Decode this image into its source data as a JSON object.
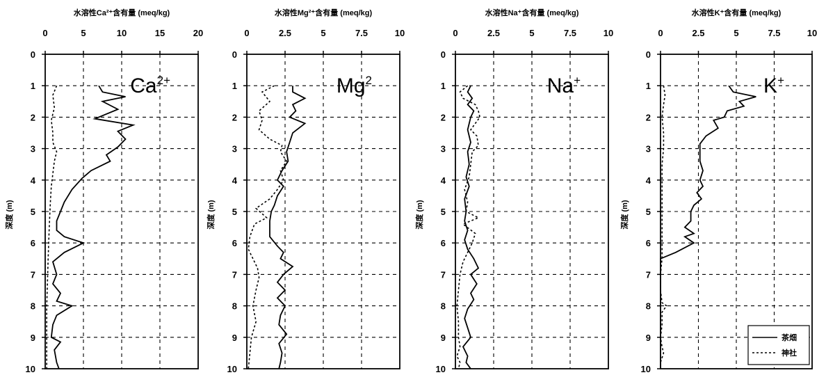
{
  "chart_data": [
    {
      "type": "line",
      "title": "水溶性Ca²⁺含有量 (meq/kg)",
      "panel_label": "Ca2+",
      "ylabel": "深度 (m)",
      "xlim": [
        0,
        20
      ],
      "xticks": [
        "0",
        "5",
        "10",
        "15",
        "20"
      ],
      "ylim": [
        0,
        10
      ],
      "yticks": [
        "0",
        "1",
        "2",
        "3",
        "4",
        "5",
        "6",
        "7",
        "8",
        "9",
        "10"
      ],
      "grid": true,
      "series": [
        {
          "name": "茶畑",
          "style": "solid",
          "color": "#000000",
          "points": [
            [
              7,
              1.0
            ],
            [
              7.5,
              1.2
            ],
            [
              10.5,
              1.35
            ],
            [
              7.5,
              1.5
            ],
            [
              9.5,
              1.75
            ],
            [
              6.5,
              2.05
            ],
            [
              11.5,
              2.25
            ],
            [
              9.5,
              2.45
            ],
            [
              10.5,
              2.7
            ],
            [
              9.5,
              2.95
            ],
            [
              8,
              3.2
            ],
            [
              8.5,
              3.4
            ],
            [
              6,
              3.7
            ],
            [
              4.8,
              3.95
            ],
            [
              3.5,
              4.3
            ],
            [
              2.5,
              4.7
            ],
            [
              2,
              5.0
            ],
            [
              1.5,
              5.3
            ],
            [
              1.5,
              5.6
            ],
            [
              2.5,
              5.8
            ],
            [
              5,
              6.0
            ],
            [
              2.5,
              6.3
            ],
            [
              1,
              6.6
            ],
            [
              1.5,
              7.0
            ],
            [
              1,
              7.3
            ],
            [
              2,
              7.6
            ],
            [
              1.5,
              7.85
            ],
            [
              3.5,
              8.0
            ],
            [
              1.5,
              8.3
            ],
            [
              1,
              8.6
            ],
            [
              0.8,
              9.0
            ],
            [
              2,
              9.15
            ],
            [
              1.2,
              9.4
            ],
            [
              1.5,
              9.8
            ],
            [
              1.8,
              10.0
            ]
          ]
        },
        {
          "name": "神社",
          "style": "dashed",
          "color": "#000000",
          "points": [
            [
              1.5,
              1.0
            ],
            [
              1.0,
              1.3
            ],
            [
              1.2,
              1.7
            ],
            [
              0.8,
              2.1
            ],
            [
              1.0,
              2.5
            ],
            [
              1.0,
              2.8
            ],
            [
              1.5,
              3.1
            ],
            [
              1.2,
              3.4
            ],
            [
              1.0,
              3.8
            ],
            [
              0.8,
              4.2
            ],
            [
              0.7,
              4.6
            ],
            [
              0.6,
              5.1
            ],
            [
              0.5,
              5.7
            ],
            [
              0.4,
              6.4
            ],
            [
              0.3,
              7.2
            ],
            [
              0.2,
              8.0
            ],
            [
              0.2,
              9.0
            ],
            [
              0.2,
              10.0
            ]
          ]
        }
      ]
    },
    {
      "type": "line",
      "title": "水溶性Mg²⁺含有量 (meq/kg)",
      "panel_label": "Mg2",
      "ylabel": "深度 (m)",
      "xlim": [
        0,
        10
      ],
      "xticks": [
        "0",
        "2.5",
        "5",
        "7.5",
        "10"
      ],
      "ylim": [
        0,
        10
      ],
      "yticks": [
        "0",
        "1",
        "2",
        "3",
        "4",
        "5",
        "6",
        "7",
        "8",
        "9",
        "10"
      ],
      "grid": true,
      "series": [
        {
          "name": "茶畑",
          "style": "solid",
          "color": "#000000",
          "points": [
            [
              3.0,
              1.0
            ],
            [
              3.0,
              1.2
            ],
            [
              3.8,
              1.4
            ],
            [
              3.0,
              1.6
            ],
            [
              3.2,
              1.8
            ],
            [
              2.8,
              2.0
            ],
            [
              3.8,
              2.2
            ],
            [
              3.0,
              2.5
            ],
            [
              2.8,
              2.8
            ],
            [
              2.6,
              3.1
            ],
            [
              2.7,
              3.4
            ],
            [
              2.3,
              3.7
            ],
            [
              2.0,
              4.0
            ],
            [
              2.4,
              4.2
            ],
            [
              2.0,
              4.5
            ],
            [
              1.8,
              4.8
            ],
            [
              1.6,
              5.0
            ],
            [
              1.5,
              5.3
            ],
            [
              1.5,
              5.6
            ],
            [
              1.5,
              5.8
            ],
            [
              2.0,
              6.1
            ],
            [
              2.4,
              6.3
            ],
            [
              2.2,
              6.5
            ],
            [
              3.0,
              6.75
            ],
            [
              2.4,
              7.0
            ],
            [
              2.0,
              7.25
            ],
            [
              2.5,
              7.5
            ],
            [
              2.0,
              7.75
            ],
            [
              2.5,
              8.0
            ],
            [
              2.2,
              8.3
            ],
            [
              2.1,
              8.6
            ],
            [
              2.6,
              8.9
            ],
            [
              2.1,
              9.2
            ],
            [
              2.3,
              9.5
            ],
            [
              2.2,
              9.8
            ],
            [
              2.1,
              10.0
            ]
          ]
        },
        {
          "name": "神社",
          "style": "dashed",
          "color": "#000000",
          "points": [
            [
              1.8,
              1.0
            ],
            [
              1.0,
              1.2
            ],
            [
              1.5,
              1.5
            ],
            [
              0.8,
              1.8
            ],
            [
              1.0,
              2.1
            ],
            [
              0.8,
              2.4
            ],
            [
              1.5,
              2.7
            ],
            [
              2.3,
              2.9
            ],
            [
              2.2,
              3.1
            ],
            [
              2.6,
              3.4
            ],
            [
              2.2,
              3.7
            ],
            [
              2.4,
              4.0
            ],
            [
              2.0,
              4.3
            ],
            [
              1.5,
              4.6
            ],
            [
              0.6,
              4.9
            ],
            [
              1.3,
              5.2
            ],
            [
              0.5,
              5.4
            ],
            [
              0.2,
              5.8
            ],
            [
              0.1,
              6.2
            ],
            [
              0.4,
              6.5
            ],
            [
              0.7,
              6.8
            ],
            [
              0.8,
              7.1
            ],
            [
              0.6,
              7.5
            ],
            [
              0.4,
              8.0
            ],
            [
              0.6,
              8.5
            ],
            [
              0.3,
              9.0
            ],
            [
              0.2,
              9.5
            ],
            [
              0.1,
              10.0
            ]
          ]
        }
      ]
    },
    {
      "type": "line",
      "title": "水溶性Na⁺含有量 (meq/kg)",
      "panel_label": "Na+",
      "ylabel": "深度 (m)",
      "xlim": [
        0,
        10
      ],
      "xticks": [
        "0",
        "2.5",
        "5",
        "7.5",
        "10"
      ],
      "ylim": [
        0,
        10
      ],
      "yticks": [
        "0",
        "1",
        "2",
        "3",
        "4",
        "5",
        "6",
        "7",
        "8",
        "9",
        "10"
      ],
      "grid": true,
      "series": [
        {
          "name": "茶畑",
          "style": "solid",
          "color": "#000000",
          "points": [
            [
              1.0,
              1.0
            ],
            [
              0.8,
              1.2
            ],
            [
              1.1,
              1.4
            ],
            [
              0.8,
              1.6
            ],
            [
              1.2,
              1.8
            ],
            [
              1.0,
              2.0
            ],
            [
              0.8,
              2.4
            ],
            [
              1.0,
              2.8
            ],
            [
              0.8,
              3.1
            ],
            [
              0.9,
              3.5
            ],
            [
              0.7,
              3.9
            ],
            [
              0.9,
              4.2
            ],
            [
              0.6,
              4.6
            ],
            [
              0.7,
              5.0
            ],
            [
              0.6,
              5.3
            ],
            [
              0.8,
              5.6
            ],
            [
              0.6,
              5.9
            ],
            [
              0.8,
              6.2
            ],
            [
              1.2,
              6.5
            ],
            [
              1.5,
              6.8
            ],
            [
              1.0,
              7.0
            ],
            [
              1.4,
              7.3
            ],
            [
              1.0,
              7.6
            ],
            [
              1.2,
              7.8
            ],
            [
              0.8,
              8.1
            ],
            [
              0.6,
              8.4
            ],
            [
              0.8,
              8.7
            ],
            [
              1.0,
              9.0
            ],
            [
              0.5,
              9.3
            ],
            [
              0.8,
              9.6
            ],
            [
              0.7,
              9.8
            ],
            [
              1.0,
              10.0
            ]
          ]
        },
        {
          "name": "神社",
          "style": "dashed",
          "color": "#000000",
          "points": [
            [
              0.8,
              1.0
            ],
            [
              0.3,
              1.2
            ],
            [
              0.5,
              1.4
            ],
            [
              1.3,
              1.6
            ],
            [
              1.5,
              1.8
            ],
            [
              1.6,
              2.0
            ],
            [
              1.3,
              2.2
            ],
            [
              1.0,
              2.4
            ],
            [
              1.4,
              2.6
            ],
            [
              1.5,
              2.9
            ],
            [
              1.1,
              3.1
            ],
            [
              1.0,
              3.5
            ],
            [
              0.9,
              3.9
            ],
            [
              0.6,
              4.3
            ],
            [
              0.8,
              4.7
            ],
            [
              0.7,
              5.0
            ],
            [
              1.5,
              5.2
            ],
            [
              0.5,
              5.4
            ],
            [
              1.3,
              5.7
            ],
            [
              1.1,
              6.0
            ],
            [
              0.8,
              6.3
            ],
            [
              0.5,
              6.6
            ],
            [
              0.3,
              7.0
            ],
            [
              0.2,
              7.5
            ],
            [
              0.1,
              8.0
            ],
            [
              0.2,
              8.5
            ],
            [
              0.2,
              9.0
            ],
            [
              0.3,
              9.3
            ],
            [
              0.1,
              9.6
            ],
            [
              0.3,
              9.8
            ],
            [
              0.2,
              10.0
            ]
          ]
        }
      ]
    },
    {
      "type": "line",
      "title": "水溶性K⁺含有量 (meq/kg)",
      "panel_label": "K+",
      "ylabel": "深度 (m)",
      "xlim": [
        0,
        10
      ],
      "xticks": [
        "0",
        "2.5",
        "5",
        "7.5",
        "10"
      ],
      "ylim": [
        0,
        10
      ],
      "yticks": [
        "0",
        "1",
        "2",
        "3",
        "4",
        "5",
        "6",
        "7",
        "8",
        "9",
        "10"
      ],
      "grid": true,
      "legend": {
        "position": "bottom-right",
        "entries": [
          "茶畑",
          "神社"
        ]
      },
      "series": [
        {
          "name": "茶畑",
          "style": "solid",
          "color": "#000000",
          "points": [
            [
              4.5,
              1.0
            ],
            [
              4.8,
              1.2
            ],
            [
              6.3,
              1.35
            ],
            [
              5.2,
              1.5
            ],
            [
              5.5,
              1.65
            ],
            [
              4.4,
              1.8
            ],
            [
              4.2,
              2.0
            ],
            [
              3.5,
              2.1
            ],
            [
              3.8,
              2.35
            ],
            [
              3.0,
              2.6
            ],
            [
              2.6,
              2.85
            ],
            [
              2.6,
              3.1
            ],
            [
              2.6,
              3.4
            ],
            [
              2.8,
              3.7
            ],
            [
              2.6,
              4.0
            ],
            [
              2.8,
              4.2
            ],
            [
              2.4,
              4.4
            ],
            [
              2.7,
              4.6
            ],
            [
              2.2,
              4.8
            ],
            [
              2.0,
              5.0
            ],
            [
              2.0,
              5.3
            ],
            [
              1.6,
              5.5
            ],
            [
              2.2,
              5.7
            ],
            [
              1.6,
              5.8
            ],
            [
              2.2,
              6.0
            ],
            [
              1.0,
              6.3
            ],
            [
              0.0,
              6.5
            ],
            [
              0.0,
              7.0
            ],
            [
              0.0,
              8.0
            ],
            [
              0.0,
              9.0
            ],
            [
              0.0,
              10.0
            ]
          ]
        },
        {
          "name": "神社",
          "style": "dashed",
          "color": "#000000",
          "points": [
            [
              0.2,
              1.0
            ],
            [
              0.3,
              1.3
            ],
            [
              0.2,
              1.6
            ],
            [
              0.1,
              2.0
            ],
            [
              0.2,
              2.5
            ],
            [
              0.2,
              3.0
            ],
            [
              0.1,
              3.5
            ],
            [
              0.1,
              4.0
            ],
            [
              0.1,
              4.5
            ],
            [
              0.1,
              5.0
            ],
            [
              0.1,
              5.5
            ],
            [
              0.1,
              6.0
            ],
            [
              0.1,
              6.5
            ],
            [
              0.0,
              7.0
            ],
            [
              0.0,
              7.5
            ],
            [
              0.1,
              7.9
            ],
            [
              0.4,
              8.0
            ],
            [
              0.1,
              8.2
            ],
            [
              0.1,
              8.6
            ],
            [
              0.0,
              9.0
            ],
            [
              0.1,
              9.3
            ],
            [
              0.2,
              9.5
            ],
            [
              0.0,
              9.8
            ],
            [
              0.0,
              10.0
            ]
          ]
        }
      ]
    }
  ]
}
